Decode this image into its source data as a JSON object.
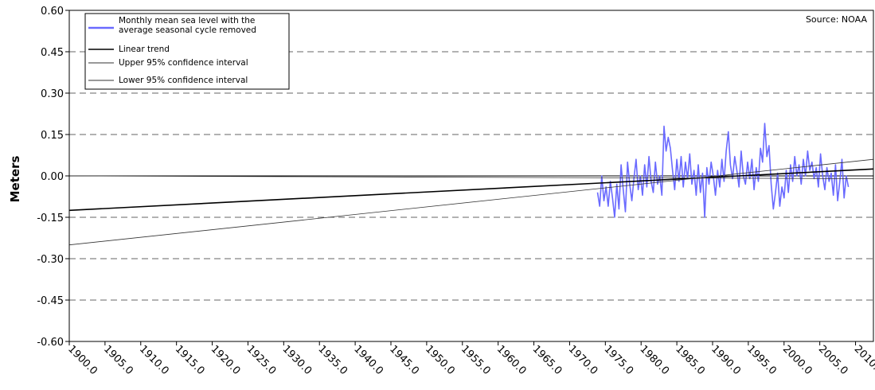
{
  "chart_data": {
    "type": "line",
    "title": "",
    "source": "Source: NOAA",
    "xlabel": "",
    "ylabel": "Meters",
    "xlim": [
      1900.0,
      2012.5
    ],
    "ylim": [
      -0.6,
      0.6
    ],
    "yticks": [
      0.6,
      0.45,
      0.3,
      0.15,
      0.0,
      -0.15,
      -0.3,
      -0.45,
      -0.6
    ],
    "ytick_labels": [
      "0.60",
      "0.45",
      "0.30",
      "0.15",
      "0.00",
      "-0.15",
      "-0.30",
      "-0.45",
      "-0.60"
    ],
    "xticks": [
      1900,
      1905,
      1910,
      1915,
      1920,
      1925,
      1930,
      1935,
      1940,
      1945,
      1950,
      1955,
      1960,
      1965,
      1970,
      1975,
      1980,
      1985,
      1990,
      1995,
      2000,
      2005,
      2010
    ],
    "xtick_labels": [
      "1900.0",
      "1905.0",
      "1910.0",
      "1915.0",
      "1920.0",
      "1925.0",
      "1930.0",
      "1935.0",
      "1940.0",
      "1945.0",
      "1950.0",
      "1955.0",
      "1960.0",
      "1965.0",
      "1970.0",
      "1975.0",
      "1980.0",
      "1985.0",
      "1990.0",
      "1995.0",
      "2000.0",
      "2005.0",
      "2010.0"
    ],
    "grid": "horizontal dashed",
    "legend_position": "top-left",
    "legend": [
      {
        "label_line1": "Monthly mean sea level with the",
        "label_line2": "average seasonal cycle removed",
        "color": "#6a6aff"
      },
      {
        "label_line1": "Linear trend",
        "label_line2": "",
        "color": "#000000"
      },
      {
        "label_line1": "Upper 95% confidence interval",
        "label_line2": "",
        "color": "#333333"
      },
      {
        "label_line1": "Lower 95% confidence interval",
        "label_line2": "",
        "color": "#333333"
      }
    ],
    "series": [
      {
        "name": "Monthly mean sea level with the average seasonal cycle removed",
        "color": "#6a6aff",
        "x": [
          1973.9,
          1974.2,
          1974.5,
          1974.8,
          1975.1,
          1975.4,
          1975.7,
          1976.0,
          1976.3,
          1976.6,
          1976.9,
          1977.2,
          1977.5,
          1977.8,
          1978.1,
          1978.4,
          1978.7,
          1979.0,
          1979.3,
          1979.6,
          1979.9,
          1980.2,
          1980.5,
          1980.8,
          1981.1,
          1981.4,
          1981.7,
          1982.0,
          1982.3,
          1982.6,
          1982.9,
          1983.2,
          1983.5,
          1983.8,
          1984.1,
          1984.4,
          1984.7,
          1985.0,
          1985.3,
          1985.6,
          1985.9,
          1986.2,
          1986.5,
          1986.8,
          1987.1,
          1987.4,
          1987.7,
          1988.0,
          1988.3,
          1988.6,
          1988.9,
          1989.2,
          1989.5,
          1989.8,
          1990.1,
          1990.4,
          1990.7,
          1991.0,
          1991.3,
          1991.6,
          1991.9,
          1992.2,
          1992.5,
          1992.8,
          1993.1,
          1993.4,
          1993.7,
          1994.0,
          1994.3,
          1994.6,
          1994.9,
          1995.2,
          1995.5,
          1995.8,
          1996.1,
          1996.4,
          1996.7,
          1997.0,
          1997.3,
          1997.6,
          1997.9,
          1998.2,
          1998.5,
          1998.8,
          1999.1,
          1999.4,
          1999.7,
          2000.0,
          2000.3,
          2000.6,
          2000.9,
          2001.2,
          2001.5,
          2001.8,
          2002.1,
          2002.4,
          2002.7,
          2003.0,
          2003.3,
          2003.6,
          2003.9,
          2004.2,
          2004.5,
          2004.8,
          2005.1,
          2005.4,
          2005.7,
          2006.0,
          2006.3,
          2006.6,
          2006.9,
          2007.2,
          2007.5,
          2007.8,
          2008.1,
          2008.4,
          2008.7,
          2009.0
        ],
        "y": [
          -0.06,
          -0.11,
          0.0,
          -0.09,
          -0.04,
          -0.11,
          -0.02,
          -0.08,
          -0.15,
          -0.03,
          -0.12,
          0.04,
          -0.05,
          -0.13,
          0.05,
          -0.03,
          -0.09,
          -0.01,
          0.06,
          -0.05,
          0.0,
          -0.07,
          0.04,
          -0.04,
          0.07,
          -0.02,
          -0.06,
          0.05,
          -0.03,
          0.0,
          -0.07,
          0.18,
          0.09,
          0.14,
          0.1,
          0.02,
          -0.05,
          0.06,
          -0.02,
          0.07,
          -0.04,
          0.05,
          -0.01,
          0.08,
          -0.03,
          0.02,
          -0.07,
          0.04,
          -0.06,
          0.01,
          -0.15,
          0.03,
          -0.03,
          0.05,
          0.0,
          -0.07,
          0.02,
          -0.04,
          0.06,
          -0.02,
          0.09,
          0.16,
          0.04,
          -0.01,
          0.07,
          0.02,
          -0.04,
          0.09,
          0.0,
          -0.03,
          0.05,
          -0.01,
          0.06,
          -0.05,
          0.03,
          -0.02,
          0.1,
          0.05,
          0.19,
          0.07,
          0.11,
          -0.03,
          -0.12,
          -0.06,
          0.01,
          -0.11,
          -0.04,
          -0.08,
          0.02,
          -0.06,
          0.04,
          -0.02,
          0.07,
          0.0,
          0.04,
          -0.03,
          0.06,
          0.0,
          0.09,
          0.02,
          0.05,
          -0.01,
          0.03,
          -0.04,
          0.08,
          0.0,
          -0.05,
          0.03,
          -0.02,
          0.01,
          -0.07,
          0.04,
          -0.09,
          -0.02,
          0.06,
          -0.08,
          0.0,
          -0.04
        ]
      },
      {
        "name": "Linear trend",
        "color": "#000000",
        "x": [
          1900.0,
          2012.5
        ],
        "y": [
          -0.125,
          0.025
        ]
      },
      {
        "name": "Upper 95% confidence interval",
        "color": "#333333",
        "x": [
          1900.0,
          2012.5
        ],
        "y": [
          -0.25,
          0.06
        ]
      },
      {
        "name": "Lower 95% confidence interval",
        "color": "#333333",
        "x": [
          1900.0,
          2012.5
        ],
        "y": [
          0.0,
          -0.01
        ]
      }
    ]
  }
}
